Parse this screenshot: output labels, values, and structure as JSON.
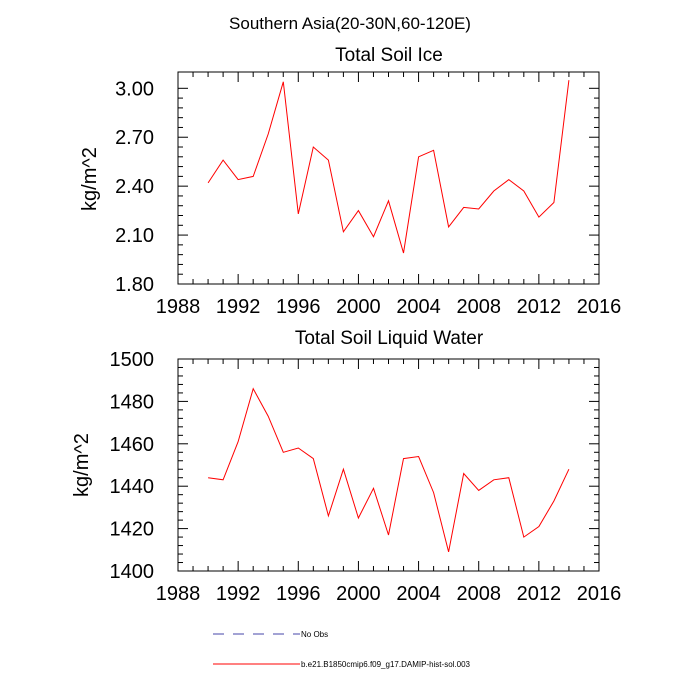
{
  "header": {
    "title": "Southern Asia(20-30N,60-120E)"
  },
  "chart_data": [
    {
      "type": "line",
      "title": "Total Soil Ice",
      "xlabel": "",
      "ylabel": "kg/m^2",
      "xlim": [
        1988,
        2016
      ],
      "ylim": [
        1.8,
        3.1
      ],
      "xticks": [
        1988,
        1992,
        1996,
        2000,
        2004,
        2008,
        2012,
        2016
      ],
      "xtick_labels": [
        "1988",
        "1992",
        "1996",
        "2000",
        "2004",
        "2008",
        "2012",
        "2016"
      ],
      "yticks": [
        1.8,
        2.1,
        2.4,
        2.7,
        3.0
      ],
      "ytick_labels": [
        "1.80",
        "2.10",
        "2.40",
        "2.70",
        "3.00"
      ],
      "grid": false,
      "series": [
        {
          "color": "#ff0000",
          "x": [
            1990,
            1991,
            1992,
            1993,
            1994,
            1995,
            1996,
            1997,
            1998,
            1999,
            2000,
            2001,
            2002,
            2003,
            2004,
            2005,
            2006,
            2007,
            2008,
            2009,
            2010,
            2011,
            2012,
            2013,
            2014
          ],
          "y": [
            2.42,
            2.56,
            2.44,
            2.46,
            2.72,
            3.04,
            2.23,
            2.64,
            2.56,
            2.12,
            2.25,
            2.09,
            2.31,
            1.99,
            2.58,
            2.62,
            2.15,
            2.27,
            2.26,
            2.37,
            2.44,
            2.37,
            2.21,
            2.3,
            3.05
          ]
        }
      ]
    },
    {
      "type": "line",
      "title": "Total Soil Liquid Water",
      "xlabel": "",
      "ylabel": "kg/m^2",
      "xlim": [
        1988,
        2016
      ],
      "ylim": [
        1400,
        1500
      ],
      "xticks": [
        1988,
        1992,
        1996,
        2000,
        2004,
        2008,
        2012,
        2016
      ],
      "xtick_labels": [
        "1988",
        "1992",
        "1996",
        "2000",
        "2004",
        "2008",
        "2012",
        "2016"
      ],
      "yticks": [
        1400,
        1420,
        1440,
        1460,
        1480,
        1500
      ],
      "ytick_labels": [
        "1400",
        "1420",
        "1440",
        "1460",
        "1480",
        "1500"
      ],
      "grid": false,
      "series": [
        {
          "color": "#ff0000",
          "x": [
            1990,
            1991,
            1992,
            1993,
            1994,
            1995,
            1996,
            1997,
            1998,
            1999,
            2000,
            2001,
            2002,
            2003,
            2004,
            2005,
            2006,
            2007,
            2008,
            2009,
            2010,
            2011,
            2012,
            2013,
            2014
          ],
          "y": [
            1444,
            1443,
            1461,
            1486,
            1473,
            1456,
            1458,
            1453,
            1426,
            1448,
            1425,
            1439,
            1417,
            1453,
            1454,
            1437,
            1409,
            1446,
            1438,
            1443,
            1444,
            1416,
            1421,
            1433,
            1448
          ]
        }
      ]
    }
  ],
  "legend": {
    "items": [
      {
        "label": "No Obs",
        "color": "#4444aa",
        "style": "dashed"
      },
      {
        "label": "b.e21.B1850cmip6.f09_g17.DAMIP-hist-sol.003",
        "color": "#ff0000",
        "style": "solid"
      }
    ]
  }
}
